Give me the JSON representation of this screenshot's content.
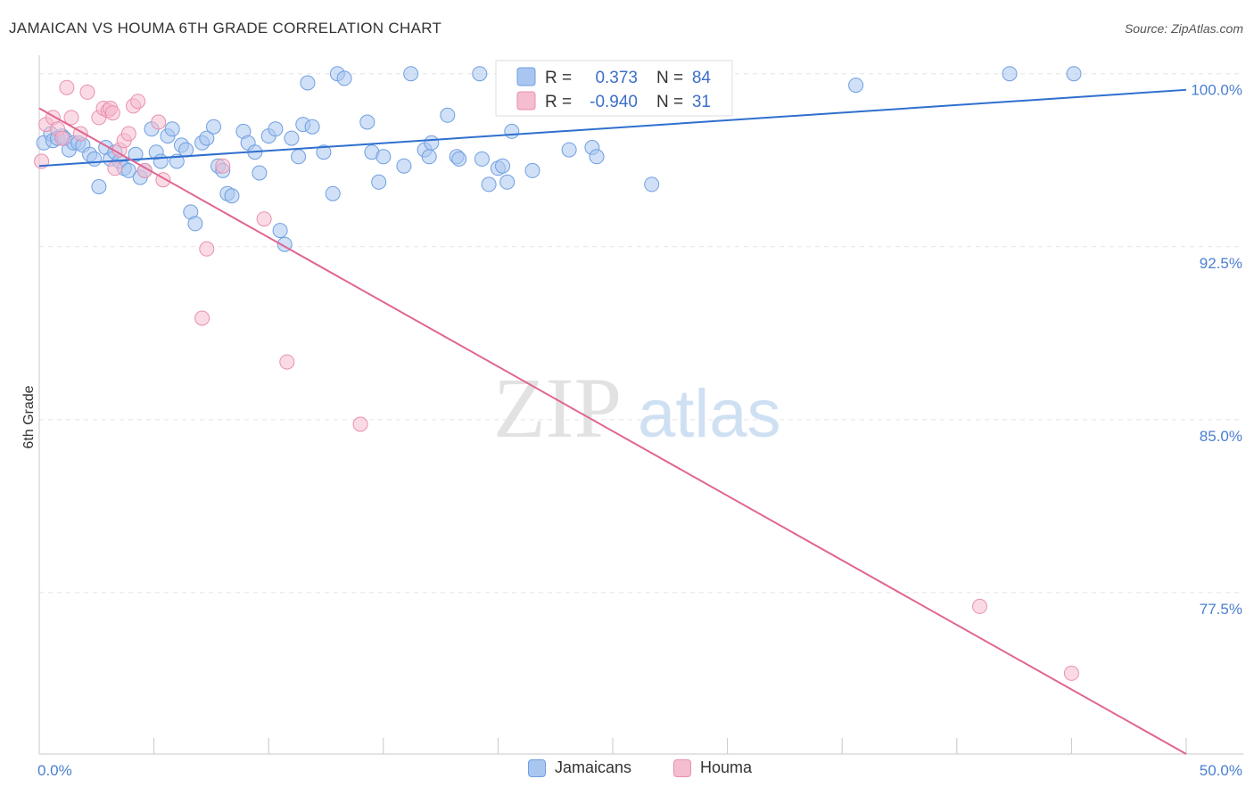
{
  "title": "JAMAICAN VS HOUMA 6TH GRADE CORRELATION CHART",
  "source": "Source: ZipAtlas.com",
  "watermark": {
    "zip": "ZIP",
    "atlas": "atlas"
  },
  "chart_data": {
    "type": "scatter",
    "ylabel": "6th Grade",
    "xlim": [
      0,
      50
    ],
    "ylim": [
      70.5,
      100.8
    ],
    "x_tick_labels": [
      "0.0%",
      "50.0%"
    ],
    "y_ticks": [
      {
        "value": 100.0,
        "label": "100.0%"
      },
      {
        "value": 92.5,
        "label": "92.5%"
      },
      {
        "value": 85.0,
        "label": "85.0%"
      },
      {
        "value": 77.5,
        "label": "77.5%"
      }
    ],
    "grid": true,
    "legend": {
      "position": "top-center",
      "r_label": "R =",
      "n_label": "N =",
      "entries": [
        {
          "r": "0.373",
          "n": "84"
        },
        {
          "r": "-0.940",
          "n": "31"
        }
      ]
    },
    "series": [
      {
        "name": "Jamaicans",
        "color": "#6f9fe0",
        "fill": "#a9c6f0",
        "trend": {
          "x": [
            0,
            50
          ],
          "y": [
            96.0,
            99.3
          ],
          "color": "#2f6fcf"
        },
        "points": [
          [
            0.2,
            97.0
          ],
          [
            0.5,
            97.4
          ],
          [
            0.6,
            97.1
          ],
          [
            0.8,
            97.2
          ],
          [
            1.0,
            97.3
          ],
          [
            1.1,
            97.2
          ],
          [
            1.3,
            96.7
          ],
          [
            1.5,
            97.0
          ],
          [
            1.7,
            97.0
          ],
          [
            1.9,
            96.9
          ],
          [
            2.2,
            96.5
          ],
          [
            2.4,
            96.3
          ],
          [
            2.6,
            95.1
          ],
          [
            2.9,
            96.8
          ],
          [
            3.1,
            96.3
          ],
          [
            3.3,
            96.6
          ],
          [
            3.5,
            96.2
          ],
          [
            3.7,
            95.9
          ],
          [
            3.9,
            95.8
          ],
          [
            4.2,
            96.5
          ],
          [
            4.4,
            95.5
          ],
          [
            4.6,
            95.8
          ],
          [
            4.9,
            97.6
          ],
          [
            5.1,
            96.6
          ],
          [
            5.3,
            96.2
          ],
          [
            5.6,
            97.3
          ],
          [
            5.8,
            97.6
          ],
          [
            6.0,
            96.2
          ],
          [
            6.2,
            96.9
          ],
          [
            6.4,
            96.7
          ],
          [
            6.6,
            94.0
          ],
          [
            6.8,
            93.5
          ],
          [
            7.1,
            97.0
          ],
          [
            7.3,
            97.2
          ],
          [
            7.6,
            97.7
          ],
          [
            7.8,
            96.0
          ],
          [
            8.0,
            95.8
          ],
          [
            8.2,
            94.8
          ],
          [
            8.4,
            94.7
          ],
          [
            8.9,
            97.5
          ],
          [
            9.1,
            97.0
          ],
          [
            9.4,
            96.6
          ],
          [
            9.6,
            95.7
          ],
          [
            10.0,
            97.3
          ],
          [
            10.3,
            97.6
          ],
          [
            10.5,
            93.2
          ],
          [
            10.7,
            92.6
          ],
          [
            11.0,
            97.2
          ],
          [
            11.3,
            96.4
          ],
          [
            11.5,
            97.8
          ],
          [
            11.7,
            99.6
          ],
          [
            11.9,
            97.7
          ],
          [
            12.4,
            96.6
          ],
          [
            12.8,
            94.8
          ],
          [
            13.0,
            100.0
          ],
          [
            13.3,
            99.8
          ],
          [
            14.3,
            97.9
          ],
          [
            14.5,
            96.6
          ],
          [
            14.8,
            95.3
          ],
          [
            15.0,
            96.4
          ],
          [
            15.9,
            96.0
          ],
          [
            16.2,
            100.0
          ],
          [
            16.8,
            96.7
          ],
          [
            17.0,
            96.4
          ],
          [
            17.1,
            97.0
          ],
          [
            17.8,
            98.2
          ],
          [
            18.2,
            96.4
          ],
          [
            18.3,
            96.3
          ],
          [
            19.2,
            100.0
          ],
          [
            19.3,
            96.3
          ],
          [
            19.6,
            95.2
          ],
          [
            20.0,
            95.9
          ],
          [
            20.2,
            96.0
          ],
          [
            20.4,
            95.3
          ],
          [
            20.6,
            97.5
          ],
          [
            21.5,
            95.8
          ],
          [
            23.1,
            96.7
          ],
          [
            24.1,
            96.8
          ],
          [
            24.3,
            96.4
          ],
          [
            26.7,
            95.2
          ],
          [
            27.3,
            100.0
          ],
          [
            35.6,
            99.5
          ],
          [
            42.3,
            100.0
          ],
          [
            45.1,
            100.0
          ]
        ]
      },
      {
        "name": "Houma",
        "color": "#e98fb0",
        "fill": "#f5bdd0",
        "trend": {
          "x": [
            0,
            50
          ],
          "y": [
            98.5,
            70.5
          ],
          "color": "#e06592"
        },
        "points": [
          [
            0.1,
            96.2
          ],
          [
            0.3,
            97.8
          ],
          [
            0.6,
            98.1
          ],
          [
            0.8,
            97.6
          ],
          [
            1.0,
            97.2
          ],
          [
            1.2,
            99.4
          ],
          [
            1.4,
            98.1
          ],
          [
            1.8,
            97.4
          ],
          [
            2.1,
            99.2
          ],
          [
            2.6,
            98.1
          ],
          [
            2.8,
            98.5
          ],
          [
            3.0,
            98.4
          ],
          [
            3.1,
            98.5
          ],
          [
            3.2,
            98.3
          ],
          [
            3.3,
            95.9
          ],
          [
            3.5,
            96.7
          ],
          [
            3.7,
            97.1
          ],
          [
            3.9,
            97.4
          ],
          [
            4.1,
            98.6
          ],
          [
            4.3,
            98.8
          ],
          [
            4.6,
            95.8
          ],
          [
            5.2,
            97.9
          ],
          [
            5.4,
            95.4
          ],
          [
            7.1,
            89.4
          ],
          [
            7.3,
            92.4
          ],
          [
            8.0,
            96.0
          ],
          [
            9.8,
            93.7
          ],
          [
            10.8,
            87.5
          ],
          [
            14.0,
            84.8
          ],
          [
            41.0,
            76.9
          ],
          [
            45.0,
            74.0
          ]
        ]
      }
    ]
  }
}
